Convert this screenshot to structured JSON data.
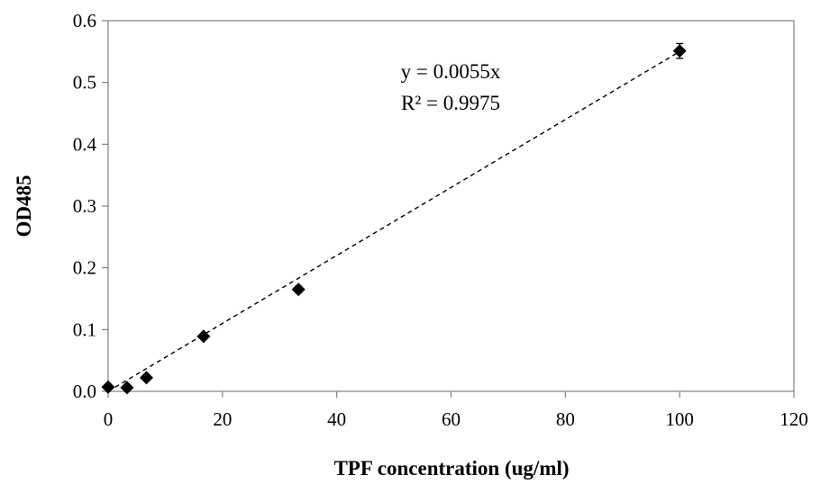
{
  "chart_data": {
    "type": "scatter",
    "title": "",
    "xlabel": "TPF concentration (ug/ml)",
    "ylabel": "OD485",
    "xlim": [
      0,
      120
    ],
    "ylim": [
      0,
      0.6
    ],
    "x_ticks": [
      "0",
      "20",
      "40",
      "60",
      "80",
      "100",
      "120"
    ],
    "y_ticks": [
      "0.0",
      "0.1",
      "0.2",
      "0.3",
      "0.4",
      "0.5",
      "0.6"
    ],
    "grid": false,
    "legend": "none",
    "series": [
      {
        "marker": "diamond",
        "color": "#000000",
        "points": [
          {
            "x": 0,
            "y": 0.007,
            "err": 0.003
          },
          {
            "x": 3.3,
            "y": 0.006,
            "err": 0.003
          },
          {
            "x": 6.7,
            "y": 0.022,
            "err": 0.004
          },
          {
            "x": 16.7,
            "y": 0.089,
            "err": 0.004
          },
          {
            "x": 33.3,
            "y": 0.165,
            "err": 0.005
          },
          {
            "x": 100,
            "y": 0.551,
            "err": 0.012
          }
        ]
      }
    ],
    "trendline": {
      "style": "dashed",
      "slope": 0.0055,
      "intercept": 0,
      "x_range": [
        0,
        100
      ]
    },
    "annotations": {
      "equation": "y = 0.0055x",
      "r_squared": "R² = 0.9975"
    }
  }
}
